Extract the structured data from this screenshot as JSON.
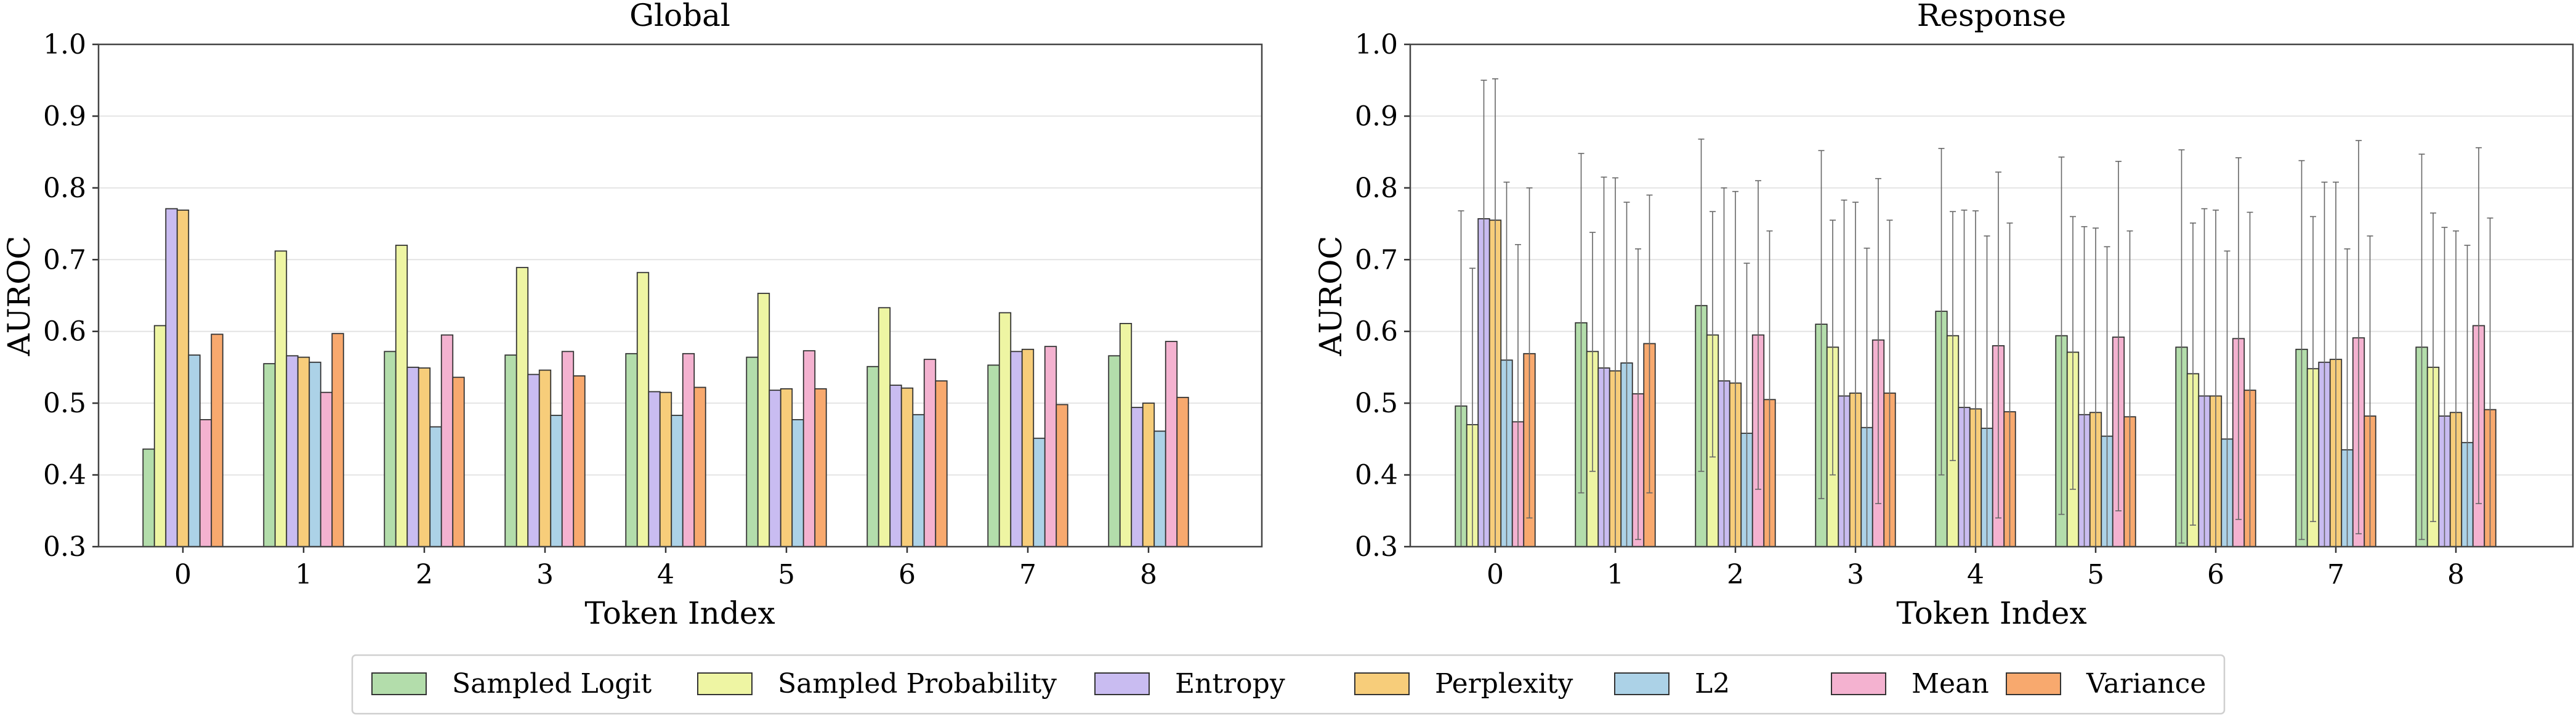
{
  "legend": {
    "items": [
      "Sampled Logit",
      "Sampled Probability",
      "Entropy",
      "Perplexity",
      "L2",
      "Mean",
      "Variance"
    ],
    "placement": "bottom-center"
  },
  "colors": [
    "#b3ddab",
    "#eef5a3",
    "#c9bcf1",
    "#f7cd7a",
    "#acd2e7",
    "#f4b2d0",
    "#f8a96e"
  ],
  "chart_data": [
    {
      "type": "bar",
      "title": "Global",
      "xlabel": "Token Index",
      "ylabel": "AUROC",
      "ylim": [
        0.3,
        1.0
      ],
      "yticks": [
        "0.3",
        "0.4",
        "0.5",
        "0.6",
        "0.7",
        "0.8",
        "0.9",
        "1.0"
      ],
      "grid": true,
      "categories": [
        "0",
        "1",
        "2",
        "3",
        "4",
        "5",
        "6",
        "7",
        "8"
      ],
      "series": [
        {
          "name": "Sampled Logit",
          "values": [
            0.436,
            0.555,
            0.572,
            0.567,
            0.569,
            0.564,
            0.551,
            0.553,
            0.566
          ]
        },
        {
          "name": "Sampled Probability",
          "values": [
            0.608,
            0.712,
            0.72,
            0.689,
            0.682,
            0.653,
            0.633,
            0.626,
            0.611
          ]
        },
        {
          "name": "Entropy",
          "values": [
            0.771,
            0.566,
            0.55,
            0.54,
            0.516,
            0.518,
            0.525,
            0.572,
            0.494
          ]
        },
        {
          "name": "Perplexity",
          "values": [
            0.769,
            0.564,
            0.549,
            0.546,
            0.515,
            0.52,
            0.521,
            0.575,
            0.5
          ]
        },
        {
          "name": "L2",
          "values": [
            0.567,
            0.557,
            0.467,
            0.483,
            0.483,
            0.477,
            0.484,
            0.451,
            0.461
          ]
        },
        {
          "name": "Mean",
          "values": [
            0.477,
            0.515,
            0.595,
            0.572,
            0.569,
            0.573,
            0.561,
            0.579,
            0.586
          ]
        },
        {
          "name": "Variance",
          "values": [
            0.596,
            0.597,
            0.536,
            0.538,
            0.522,
            0.52,
            0.531,
            0.498,
            0.508
          ]
        }
      ]
    },
    {
      "type": "bar",
      "title": "Response",
      "xlabel": "Token Index",
      "ylabel": "AUROC",
      "ylim": [
        0.3,
        1.0
      ],
      "yticks": [
        "0.3",
        "0.4",
        "0.5",
        "0.6",
        "0.7",
        "0.8",
        "0.9",
        "1.0"
      ],
      "grid": true,
      "error_bars": true,
      "categories": [
        "0",
        "1",
        "2",
        "3",
        "4",
        "5",
        "6",
        "7",
        "8"
      ],
      "series": [
        {
          "name": "Sampled Logit",
          "values": [
            0.496,
            0.612,
            0.636,
            0.61,
            0.628,
            0.594,
            0.578,
            0.575,
            0.578
          ],
          "upper": [
            0.768,
            0.848,
            0.868,
            0.852,
            0.855,
            0.843,
            0.853,
            0.838,
            0.847
          ],
          "lower": [
            0.225,
            0.375,
            0.405,
            0.367,
            0.4,
            0.345,
            0.305,
            0.31,
            0.31
          ]
        },
        {
          "name": "Sampled Probability",
          "values": [
            0.47,
            0.572,
            0.595,
            0.578,
            0.594,
            0.571,
            0.541,
            0.548,
            0.55
          ],
          "upper": [
            0.688,
            0.738,
            0.767,
            0.755,
            0.767,
            0.76,
            0.751,
            0.76,
            0.765
          ],
          "lower": [
            0.25,
            0.405,
            0.425,
            0.4,
            0.42,
            0.38,
            0.33,
            0.335,
            0.335
          ]
        },
        {
          "name": "Entropy",
          "values": [
            0.757,
            0.549,
            0.531,
            0.51,
            0.494,
            0.484,
            0.51,
            0.557,
            0.482
          ],
          "upper": [
            0.95,
            0.815,
            0.8,
            0.783,
            0.769,
            0.746,
            0.771,
            0.808,
            0.745
          ]
        },
        {
          "name": "Perplexity",
          "values": [
            0.755,
            0.545,
            0.528,
            0.514,
            0.492,
            0.487,
            0.51,
            0.561,
            0.487
          ],
          "upper": [
            0.952,
            0.814,
            0.795,
            0.78,
            0.768,
            0.744,
            0.769,
            0.808,
            0.74
          ]
        },
        {
          "name": "L2",
          "values": [
            0.56,
            0.556,
            0.458,
            0.466,
            0.465,
            0.454,
            0.45,
            0.435,
            0.445
          ],
          "upper": [
            0.808,
            0.78,
            0.695,
            0.716,
            0.733,
            0.718,
            0.712,
            0.715,
            0.72
          ]
        },
        {
          "name": "Mean",
          "values": [
            0.474,
            0.513,
            0.595,
            0.588,
            0.58,
            0.592,
            0.59,
            0.591,
            0.608
          ],
          "upper": [
            0.721,
            0.715,
            0.81,
            0.813,
            0.822,
            0.837,
            0.842,
            0.866,
            0.856
          ],
          "lower": [
            0.225,
            0.31,
            0.38,
            0.36,
            0.34,
            0.35,
            0.338,
            0.318,
            0.36
          ]
        },
        {
          "name": "Variance",
          "values": [
            0.569,
            0.583,
            0.505,
            0.514,
            0.488,
            0.481,
            0.518,
            0.482,
            0.491
          ],
          "upper": [
            0.8,
            0.79,
            0.74,
            0.755,
            0.751,
            0.74,
            0.766,
            0.733,
            0.758
          ],
          "lower": [
            0.34,
            0.375,
            0.275,
            0.275,
            0.225,
            0.225,
            0.275,
            0.23,
            0.225
          ]
        }
      ]
    }
  ]
}
